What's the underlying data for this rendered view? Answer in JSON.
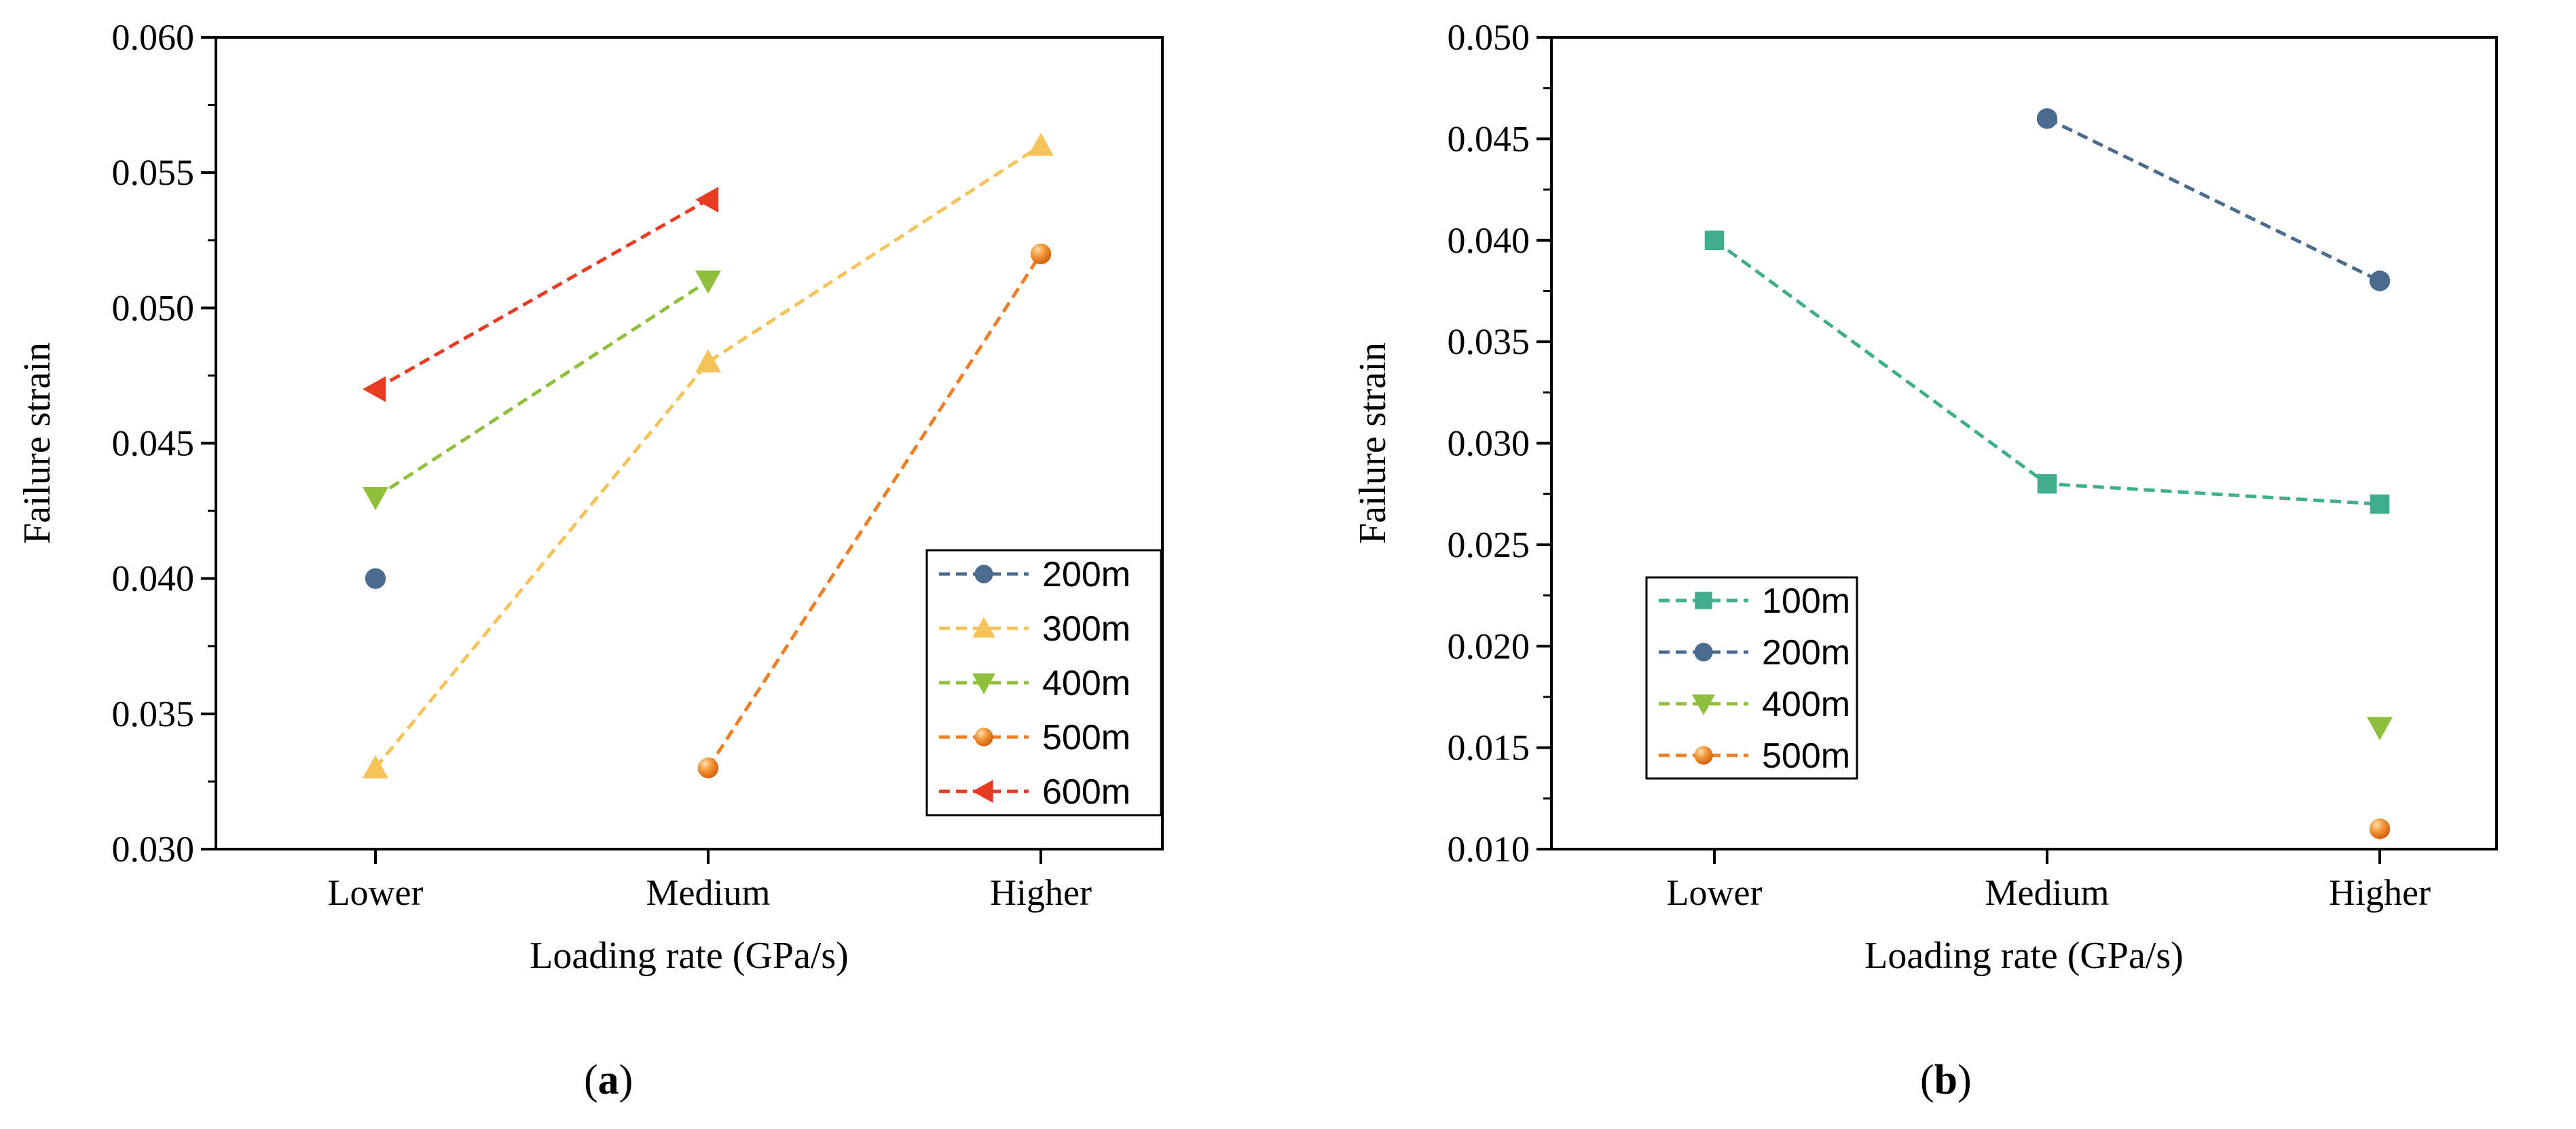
{
  "chart_data": [
    {
      "type": "line",
      "categories": [
        "Lower",
        "Medium",
        "Higher"
      ],
      "xlabel": "Loading rate (GPa/s)",
      "ylabel": "Failure strain",
      "ylim": [
        0.03,
        0.06
      ],
      "yticks": [
        "0.030",
        "0.035",
        "0.040",
        "0.045",
        "0.050",
        "0.055",
        "0.060"
      ],
      "legend_position": "bottom-right",
      "grid": false,
      "line_style": "dashed",
      "series": [
        {
          "name": "200m",
          "marker": "circle",
          "color": "#4a6b8e",
          "values": [
            0.04,
            null,
            null
          ]
        },
        {
          "name": "300m",
          "marker": "triangle-up",
          "color": "#f6c35b",
          "values": [
            0.033,
            0.048,
            0.056
          ]
        },
        {
          "name": "400m",
          "marker": "triangle-down",
          "color": "#8fbf3b",
          "values": [
            0.043,
            0.051,
            null
          ]
        },
        {
          "name": "500m",
          "marker": "ball",
          "color": "#ee7f26",
          "values": [
            null,
            0.033,
            0.052
          ]
        },
        {
          "name": "600m",
          "marker": "triangle-left",
          "color": "#e83b22",
          "values": [
            0.047,
            0.054,
            null
          ]
        }
      ],
      "panel_label": "a"
    },
    {
      "type": "line",
      "categories": [
        "Lower",
        "Medium",
        "Higher"
      ],
      "xlabel": "Loading rate (GPa/s)",
      "ylabel": "Failure strain",
      "ylim": [
        0.01,
        0.05
      ],
      "yticks": [
        "0.010",
        "0.015",
        "0.020",
        "0.025",
        "0.030",
        "0.035",
        "0.040",
        "0.045",
        "0.050"
      ],
      "legend_position": "bottom-left",
      "grid": false,
      "line_style": "dashed",
      "series": [
        {
          "name": "100m",
          "marker": "square",
          "color": "#3fae8c",
          "values": [
            0.04,
            0.028,
            0.027
          ]
        },
        {
          "name": "200m",
          "marker": "circle",
          "color": "#4a6b8e",
          "values": [
            null,
            0.046,
            0.038
          ]
        },
        {
          "name": "400m",
          "marker": "triangle-down",
          "color": "#8fbf3b",
          "values": [
            null,
            null,
            0.016
          ]
        },
        {
          "name": "500m",
          "marker": "ball",
          "color": "#ee7f26",
          "values": [
            null,
            null,
            0.011
          ]
        }
      ],
      "panel_label": "b"
    }
  ]
}
